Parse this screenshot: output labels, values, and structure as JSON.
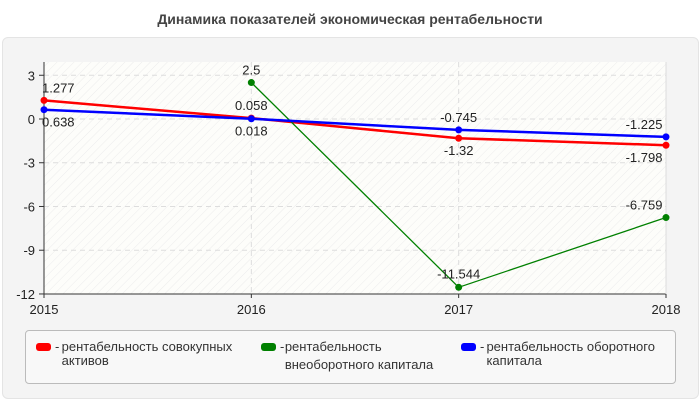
{
  "chart_data": {
    "type": "line",
    "title": "Динамика показателей экономическая рентабельности",
    "categories": [
      "2015",
      "2016",
      "2017",
      "2018"
    ],
    "ylim": [
      -12,
      4
    ],
    "yticks": [
      "3",
      "0",
      "-3",
      "-6",
      "-9",
      "-12"
    ],
    "ytick_values": [
      3,
      0,
      -3,
      -6,
      -9,
      -12
    ],
    "grid": true,
    "legend_position": "bottom",
    "series": [
      {
        "name": "рентабельность совокупных активов",
        "color": "#ff0000",
        "values": [
          1.277,
          0.058,
          -1.32,
          -1.798
        ],
        "labels": [
          "1.277",
          "0.058",
          "-1.32",
          "-1.798"
        ]
      },
      {
        "name": "рентабельность внеоборотного капитала",
        "color": "#008000",
        "values": [
          null,
          2.5,
          -11.544,
          -6.759
        ],
        "labels": [
          "",
          "2.5",
          "-11.544",
          "-6.759"
        ]
      },
      {
        "name": "рентабельность оборотного капитала",
        "color": "#0000ff",
        "values": [
          0.638,
          0.018,
          -0.745,
          -1.225
        ],
        "labels": [
          "0.638",
          "0.018",
          "-0.745",
          "-1.225"
        ]
      }
    ]
  }
}
